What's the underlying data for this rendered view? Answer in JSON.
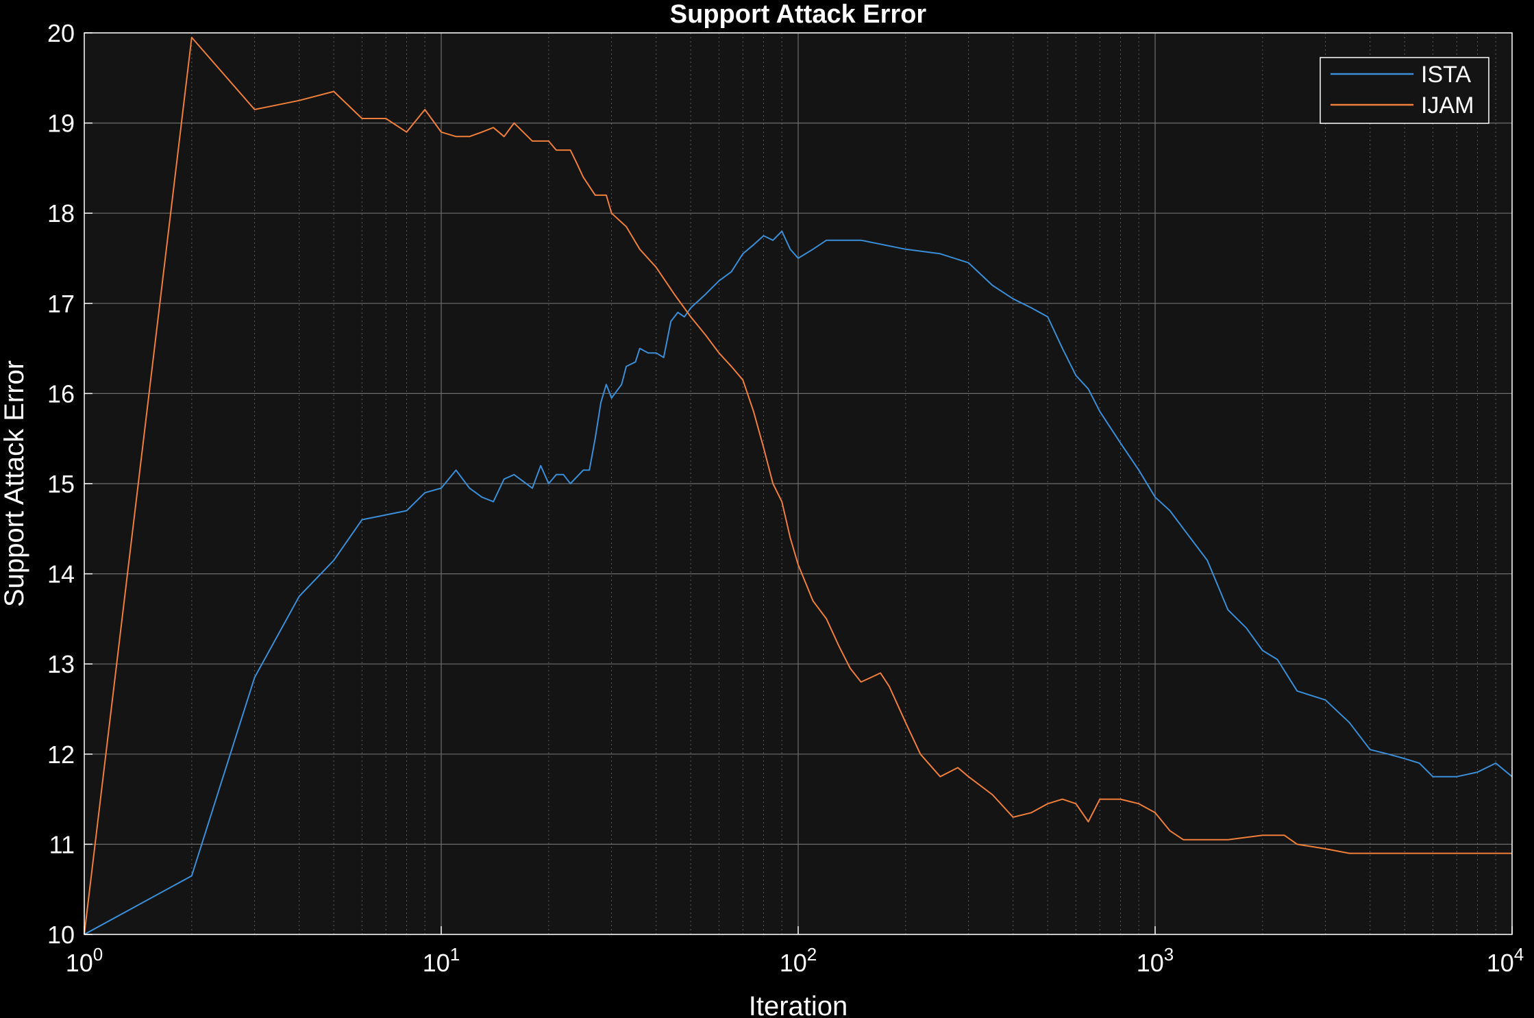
{
  "chart_data": {
    "type": "line",
    "title": "Support Attack Error",
    "xlabel": "Iteration",
    "ylabel": "Support Attack Error",
    "xscale": "log",
    "xlim": [
      1,
      10000
    ],
    "ylim": [
      10,
      20
    ],
    "xticks": [
      {
        "base": "10",
        "exp": "0",
        "value": 1
      },
      {
        "base": "10",
        "exp": "1",
        "value": 10
      },
      {
        "base": "10",
        "exp": "2",
        "value": 100
      },
      {
        "base": "10",
        "exp": "3",
        "value": 1000
      },
      {
        "base": "10",
        "exp": "4",
        "value": 10000
      }
    ],
    "yticks": [
      "10",
      "11",
      "12",
      "13",
      "14",
      "15",
      "16",
      "17",
      "18",
      "19",
      "20"
    ],
    "grid": true,
    "minor_grid": true,
    "legend_position": "top-right",
    "background": "#141414",
    "series": [
      {
        "name": "ISTA",
        "color": "#3a8fd8",
        "points": [
          [
            1,
            10.0
          ],
          [
            2,
            10.65
          ],
          [
            3,
            12.85
          ],
          [
            4,
            13.75
          ],
          [
            5,
            14.15
          ],
          [
            6,
            14.6
          ],
          [
            8,
            14.7
          ],
          [
            9,
            14.9
          ],
          [
            10,
            14.95
          ],
          [
            11,
            15.15
          ],
          [
            12,
            14.95
          ],
          [
            13,
            14.85
          ],
          [
            14,
            14.8
          ],
          [
            15,
            15.05
          ],
          [
            16,
            15.1
          ],
          [
            18,
            14.95
          ],
          [
            19,
            15.2
          ],
          [
            20,
            15.0
          ],
          [
            21,
            15.1
          ],
          [
            22,
            15.1
          ],
          [
            23,
            15.0
          ],
          [
            25,
            15.15
          ],
          [
            26,
            15.15
          ],
          [
            27,
            15.5
          ],
          [
            28,
            15.9
          ],
          [
            29,
            16.1
          ],
          [
            30,
            15.95
          ],
          [
            32,
            16.1
          ],
          [
            33,
            16.3
          ],
          [
            35,
            16.35
          ],
          [
            36,
            16.5
          ],
          [
            38,
            16.45
          ],
          [
            40,
            16.45
          ],
          [
            42,
            16.4
          ],
          [
            44,
            16.8
          ],
          [
            46,
            16.9
          ],
          [
            48,
            16.85
          ],
          [
            50,
            16.95
          ],
          [
            55,
            17.1
          ],
          [
            60,
            17.25
          ],
          [
            65,
            17.35
          ],
          [
            70,
            17.55
          ],
          [
            75,
            17.65
          ],
          [
            80,
            17.75
          ],
          [
            85,
            17.7
          ],
          [
            90,
            17.8
          ],
          [
            95,
            17.6
          ],
          [
            100,
            17.5
          ],
          [
            110,
            17.6
          ],
          [
            120,
            17.7
          ],
          [
            150,
            17.7
          ],
          [
            200,
            17.6
          ],
          [
            250,
            17.55
          ],
          [
            300,
            17.45
          ],
          [
            350,
            17.2
          ],
          [
            400,
            17.05
          ],
          [
            450,
            16.95
          ],
          [
            500,
            16.85
          ],
          [
            550,
            16.5
          ],
          [
            600,
            16.2
          ],
          [
            650,
            16.05
          ],
          [
            700,
            15.8
          ],
          [
            800,
            15.45
          ],
          [
            900,
            15.15
          ],
          [
            1000,
            14.85
          ],
          [
            1100,
            14.7
          ],
          [
            1200,
            14.5
          ],
          [
            1400,
            14.15
          ],
          [
            1600,
            13.6
          ],
          [
            1800,
            13.4
          ],
          [
            2000,
            13.15
          ],
          [
            2200,
            13.05
          ],
          [
            2500,
            12.7
          ],
          [
            3000,
            12.6
          ],
          [
            3500,
            12.35
          ],
          [
            4000,
            12.05
          ],
          [
            4500,
            12.0
          ],
          [
            5000,
            11.95
          ],
          [
            5500,
            11.9
          ],
          [
            6000,
            11.75
          ],
          [
            7000,
            11.75
          ],
          [
            8000,
            11.8
          ],
          [
            9000,
            11.9
          ],
          [
            10000,
            11.75
          ]
        ]
      },
      {
        "name": "IJAM",
        "color": "#f07f3a",
        "points": [
          [
            1,
            10.0
          ],
          [
            2,
            19.95
          ],
          [
            3,
            19.15
          ],
          [
            4,
            19.25
          ],
          [
            5,
            19.35
          ],
          [
            6,
            19.05
          ],
          [
            7,
            19.05
          ],
          [
            8,
            18.9
          ],
          [
            9,
            19.15
          ],
          [
            10,
            18.9
          ],
          [
            11,
            18.85
          ],
          [
            12,
            18.85
          ],
          [
            13,
            18.9
          ],
          [
            14,
            18.95
          ],
          [
            15,
            18.85
          ],
          [
            16,
            19.0
          ],
          [
            18,
            18.8
          ],
          [
            20,
            18.8
          ],
          [
            21,
            18.7
          ],
          [
            23,
            18.7
          ],
          [
            24,
            18.55
          ],
          [
            25,
            18.4
          ],
          [
            27,
            18.2
          ],
          [
            29,
            18.2
          ],
          [
            30,
            18.0
          ],
          [
            33,
            17.85
          ],
          [
            36,
            17.6
          ],
          [
            40,
            17.4
          ],
          [
            45,
            17.1
          ],
          [
            50,
            16.85
          ],
          [
            55,
            16.65
          ],
          [
            60,
            16.45
          ],
          [
            65,
            16.3
          ],
          [
            70,
            16.15
          ],
          [
            75,
            15.8
          ],
          [
            80,
            15.4
          ],
          [
            85,
            15.0
          ],
          [
            90,
            14.8
          ],
          [
            95,
            14.4
          ],
          [
            100,
            14.1
          ],
          [
            110,
            13.7
          ],
          [
            120,
            13.5
          ],
          [
            130,
            13.2
          ],
          [
            140,
            12.95
          ],
          [
            150,
            12.8
          ],
          [
            160,
            12.85
          ],
          [
            170,
            12.9
          ],
          [
            180,
            12.75
          ],
          [
            200,
            12.35
          ],
          [
            220,
            12.0
          ],
          [
            250,
            11.75
          ],
          [
            280,
            11.85
          ],
          [
            300,
            11.75
          ],
          [
            350,
            11.55
          ],
          [
            400,
            11.3
          ],
          [
            450,
            11.35
          ],
          [
            500,
            11.45
          ],
          [
            550,
            11.5
          ],
          [
            600,
            11.45
          ],
          [
            650,
            11.25
          ],
          [
            700,
            11.5
          ],
          [
            800,
            11.5
          ],
          [
            900,
            11.45
          ],
          [
            1000,
            11.35
          ],
          [
            1100,
            11.15
          ],
          [
            1200,
            11.05
          ],
          [
            1400,
            11.05
          ],
          [
            1600,
            11.05
          ],
          [
            2000,
            11.1
          ],
          [
            2300,
            11.1
          ],
          [
            2500,
            11.0
          ],
          [
            3000,
            10.95
          ],
          [
            3500,
            10.9
          ],
          [
            4000,
            10.9
          ],
          [
            6000,
            10.9
          ],
          [
            10000,
            10.9
          ]
        ]
      }
    ]
  }
}
